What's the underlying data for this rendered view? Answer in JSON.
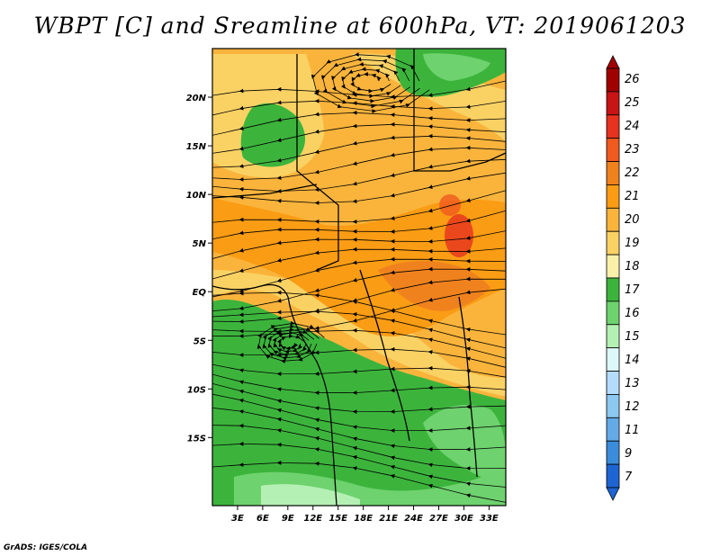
{
  "title": "WBPT [C] and Sreamline at 600hPa, VT: 2019061203",
  "credit": "GrADS: IGES/COLA",
  "map": {
    "lon_range": [
      0,
      35
    ],
    "lat_range": [
      -22,
      25
    ],
    "lat_ticks": [
      {
        "label": "20N",
        "value": 20
      },
      {
        "label": "15N",
        "value": 15
      },
      {
        "label": "10N",
        "value": 10
      },
      {
        "label": "5N",
        "value": 5
      },
      {
        "label": "EQ",
        "value": 0
      },
      {
        "label": "5S",
        "value": -5
      },
      {
        "label": "10S",
        "value": -10
      },
      {
        "label": "15S",
        "value": -15
      }
    ],
    "lon_ticks": [
      {
        "label": "3E",
        "value": 3
      },
      {
        "label": "6E",
        "value": 6
      },
      {
        "label": "9E",
        "value": 9
      },
      {
        "label": "12E",
        "value": 12
      },
      {
        "label": "15E",
        "value": 15
      },
      {
        "label": "18E",
        "value": 18
      },
      {
        "label": "21E",
        "value": 21
      },
      {
        "label": "24E",
        "value": 24
      },
      {
        "label": "27E",
        "value": 27
      },
      {
        "label": "30E",
        "value": 30
      },
      {
        "label": "33E",
        "value": 33
      }
    ]
  },
  "colorbar": {
    "labels": [
      "26",
      "25",
      "24",
      "23",
      "22",
      "21",
      "20",
      "19",
      "18",
      "17",
      "16",
      "15",
      "14",
      "13",
      "12",
      "11",
      "9",
      "7"
    ],
    "colors": [
      "#a00000",
      "#c81414",
      "#e6321e",
      "#f05a1e",
      "#f0821e",
      "#fa9c14",
      "#fab43c",
      "#fad264",
      "#faf0aa",
      "#3cb43c",
      "#6ed26e",
      "#b4f0b4",
      "#dcf8f8",
      "#b4dcfa",
      "#8cc8f0",
      "#64aae6",
      "#3c8cdc",
      "#1e64d2"
    ]
  }
}
